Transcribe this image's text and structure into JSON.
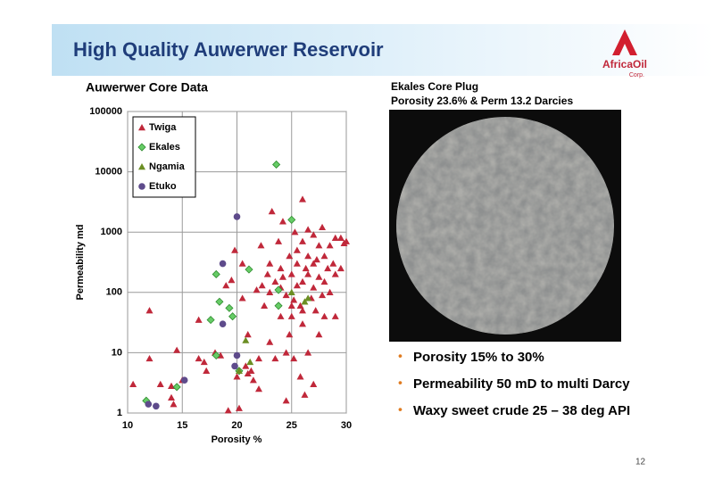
{
  "header": {
    "title": "High Quality Auwerwer Reservoir"
  },
  "logo": {
    "name": "AfricaOil",
    "sub": "Corp."
  },
  "chart_data": {
    "type": "scatter",
    "title": "Auwerwer Core Data",
    "x_label": "Porosity %",
    "y_label": "Permeability md",
    "xlim": [
      10,
      30
    ],
    "xticks": [
      10,
      15,
      20,
      25,
      30
    ],
    "ylim": [
      1,
      100000
    ],
    "yticks": [
      1,
      10,
      100,
      1000,
      10000,
      100000
    ],
    "y_scale": "log",
    "grid": true,
    "legend": "upper left",
    "series": [
      {
        "name": "Twiga",
        "color": "#c0283a",
        "marker": "triangle",
        "x": [
          10.5,
          12,
          12,
          13,
          14,
          14,
          14.5,
          14.2,
          15,
          16.5,
          16.5,
          17,
          17.2,
          18,
          18.5,
          19,
          19.2,
          19.5,
          19.8,
          20,
          20.2,
          20.5,
          20.5,
          20.8,
          21,
          21,
          21.3,
          21.5,
          21.8,
          22,
          22.2,
          22.3,
          22.5,
          22.8,
          23,
          23,
          23.2,
          23.5,
          23.5,
          23.8,
          24,
          24,
          24.2,
          24.5,
          24.5,
          24.5,
          24.8,
          24.8,
          25,
          25,
          25,
          25.2,
          25.3,
          25.5,
          25.5,
          25.8,
          25.8,
          26,
          26,
          26,
          26,
          26.2,
          26.5,
          26.5,
          26.5,
          26.5,
          26.8,
          27,
          27,
          27,
          27,
          27.2,
          27.5,
          27.5,
          27.5,
          27.8,
          28,
          28,
          28,
          28.3,
          28.5,
          28.5,
          28.8,
          29,
          29,
          29,
          29.5,
          29.8,
          29.5,
          30,
          22,
          24,
          25.5,
          26.3,
          27.3,
          23,
          24.2,
          25.2,
          26,
          27.8
        ],
        "values": [
          3,
          50,
          8,
          3,
          2.8,
          1.8,
          11,
          1.4,
          3.5,
          35,
          8,
          7,
          5,
          10,
          9,
          130,
          1.1,
          160,
          500,
          4,
          1.2,
          300,
          80,
          6,
          20,
          4.5,
          5,
          3.5,
          110,
          8,
          600,
          130,
          60,
          200,
          15,
          300,
          2200,
          150,
          8,
          700,
          40,
          250,
          1500,
          90,
          1.6,
          10,
          20,
          400,
          60,
          40,
          200,
          8,
          1000,
          300,
          130,
          60,
          4,
          3500,
          700,
          150,
          30,
          2,
          1100,
          400,
          200,
          10,
          80,
          900,
          300,
          120,
          3,
          50,
          600,
          180,
          20,
          1200,
          400,
          150,
          40,
          250,
          600,
          100,
          300,
          800,
          200,
          40,
          800,
          650,
          250,
          700,
          2.5,
          120,
          500,
          250,
          350,
          100,
          180,
          75,
          50,
          90
        ]
      },
      {
        "name": "Ekales",
        "color": "#66cc66",
        "marker": "diamond",
        "x": [
          23.6,
          25,
          21.1,
          18.1,
          19.3,
          18.4,
          19.6,
          17.6,
          23.8,
          23.8,
          18.1,
          14.5,
          11.7,
          20.2
        ],
        "values": [
          13200,
          1600,
          240,
          200,
          55,
          70,
          40,
          35,
          110,
          60,
          9,
          2.7,
          1.6,
          5
        ]
      },
      {
        "name": "Ngamia",
        "color": "#6b8e23",
        "marker": "triangle",
        "x": [
          20.8,
          20.2,
          25,
          26.5,
          26.2,
          21.2
        ],
        "values": [
          16,
          5,
          100,
          80,
          70,
          7
        ]
      },
      {
        "name": "Etuko",
        "color": "#5e4b8b",
        "marker": "circle",
        "x": [
          20,
          18.7,
          18.7,
          20,
          19.8,
          15.2,
          11.9,
          12.6
        ],
        "values": [
          1800,
          300,
          30,
          9,
          6,
          3.5,
          1.4,
          1.3
        ]
      }
    ]
  },
  "photo": {
    "caption": [
      "Ekales Core Plug",
      "Porosity 23.6% & Perm 13.2 Darcies"
    ]
  },
  "bullets": [
    "Porosity 15% to 30%",
    "Permeability 50 mD to multi Darcy",
    "Waxy sweet crude 25 – 38 deg API"
  ],
  "page_number": "12"
}
